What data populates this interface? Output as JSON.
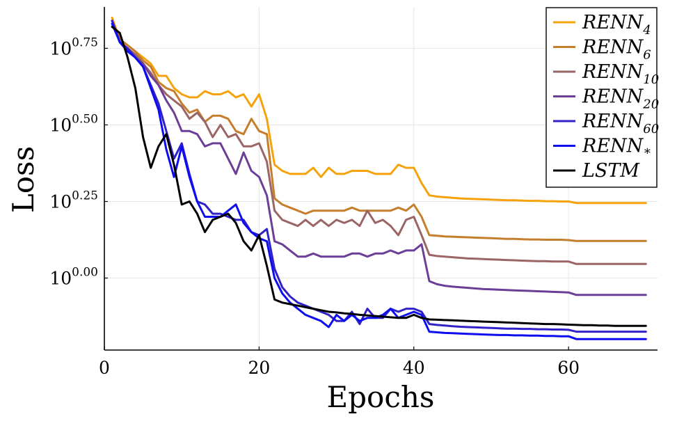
{
  "chart_data": {
    "type": "line",
    "xlabel": "Epochs",
    "ylabel": "Loss",
    "y_scale": "log10",
    "xlim": [
      0,
      71.5
    ],
    "ylim_log10": [
      -0.235,
      0.885
    ],
    "grid": true,
    "legend_position": "top-right",
    "x_ticks": [
      0,
      20,
      40,
      60
    ],
    "x_tick_labels": [
      "0",
      "20",
      "40",
      "60"
    ],
    "y_ticks_log10": [
      0.0,
      0.25,
      0.5,
      0.75
    ],
    "y_tick_labels": [
      {
        "base": "10",
        "exp": "0.00"
      },
      {
        "base": "10",
        "exp": "0.25"
      },
      {
        "base": "10",
        "exp": "0.50"
      },
      {
        "base": "10",
        "exp": "0.75"
      }
    ],
    "x": [
      1,
      2,
      3,
      4,
      5,
      6,
      7,
      8,
      9,
      10,
      11,
      12,
      13,
      14,
      15,
      16,
      17,
      18,
      19,
      20,
      21,
      22,
      23,
      24,
      25,
      26,
      27,
      28,
      29,
      30,
      31,
      32,
      33,
      34,
      35,
      36,
      37,
      38,
      39,
      40,
      41,
      42,
      43,
      44,
      45,
      46,
      47,
      48,
      49,
      50,
      51,
      52,
      53,
      54,
      55,
      56,
      57,
      58,
      59,
      60,
      61,
      62,
      63,
      64,
      65,
      66,
      67,
      68,
      69,
      70
    ],
    "series": [
      {
        "name": "RENN",
        "sub": "4",
        "color": "#f5a20c",
        "values_log10": [
          0.85,
          0.78,
          0.76,
          0.74,
          0.72,
          0.7,
          0.66,
          0.66,
          0.62,
          0.6,
          0.59,
          0.59,
          0.61,
          0.6,
          0.6,
          0.61,
          0.59,
          0.6,
          0.56,
          0.6,
          0.52,
          0.37,
          0.35,
          0.34,
          0.34,
          0.34,
          0.36,
          0.33,
          0.36,
          0.34,
          0.34,
          0.35,
          0.35,
          0.35,
          0.34,
          0.34,
          0.34,
          0.37,
          0.36,
          0.36,
          0.31,
          0.27,
          0.266,
          0.264,
          0.262,
          0.26,
          0.259,
          0.258,
          0.257,
          0.256,
          0.255,
          0.254,
          0.254,
          0.253,
          0.252,
          0.252,
          0.251,
          0.251,
          0.25,
          0.25,
          0.245,
          0.245,
          0.245,
          0.245,
          0.245,
          0.245,
          0.245,
          0.245,
          0.245,
          0.245
        ]
      },
      {
        "name": "RENN",
        "sub": "6",
        "color": "#c57e2c",
        "values_log10": [
          0.84,
          0.78,
          0.76,
          0.74,
          0.71,
          0.69,
          0.64,
          0.62,
          0.61,
          0.57,
          0.54,
          0.55,
          0.51,
          0.53,
          0.53,
          0.52,
          0.48,
          0.47,
          0.52,
          0.48,
          0.47,
          0.26,
          0.24,
          0.23,
          0.22,
          0.21,
          0.22,
          0.22,
          0.22,
          0.22,
          0.22,
          0.23,
          0.22,
          0.22,
          0.22,
          0.22,
          0.22,
          0.23,
          0.22,
          0.24,
          0.2,
          0.14,
          0.138,
          0.136,
          0.135,
          0.134,
          0.133,
          0.132,
          0.131,
          0.13,
          0.129,
          0.128,
          0.128,
          0.127,
          0.126,
          0.126,
          0.125,
          0.125,
          0.125,
          0.124,
          0.121,
          0.121,
          0.121,
          0.121,
          0.121,
          0.121,
          0.121,
          0.121,
          0.121,
          0.121
        ]
      },
      {
        "name": "RENN",
        "sub": "10",
        "color": "#9b6465",
        "values_log10": [
          0.84,
          0.77,
          0.75,
          0.73,
          0.7,
          0.67,
          0.63,
          0.6,
          0.58,
          0.56,
          0.52,
          0.54,
          0.51,
          0.46,
          0.5,
          0.46,
          0.47,
          0.43,
          0.43,
          0.44,
          0.38,
          0.22,
          0.19,
          0.18,
          0.17,
          0.19,
          0.17,
          0.19,
          0.17,
          0.19,
          0.18,
          0.19,
          0.17,
          0.22,
          0.18,
          0.19,
          0.17,
          0.14,
          0.19,
          0.2,
          0.14,
          0.076,
          0.072,
          0.07,
          0.068,
          0.066,
          0.064,
          0.063,
          0.062,
          0.061,
          0.06,
          0.059,
          0.058,
          0.057,
          0.056,
          0.055,
          0.055,
          0.054,
          0.054,
          0.054,
          0.046,
          0.046,
          0.046,
          0.046,
          0.046,
          0.046,
          0.046,
          0.046,
          0.046,
          0.046
        ]
      },
      {
        "name": "RENN",
        "sub": "20",
        "color": "#6b3e98",
        "values_log10": [
          0.84,
          0.77,
          0.75,
          0.72,
          0.7,
          0.66,
          0.63,
          0.58,
          0.54,
          0.48,
          0.48,
          0.47,
          0.43,
          0.44,
          0.44,
          0.39,
          0.34,
          0.41,
          0.35,
          0.33,
          0.27,
          0.12,
          0.11,
          0.09,
          0.07,
          0.07,
          0.08,
          0.07,
          0.07,
          0.07,
          0.07,
          0.08,
          0.08,
          0.07,
          0.08,
          0.08,
          0.09,
          0.08,
          0.09,
          0.09,
          0.11,
          -0.01,
          -0.02,
          -0.025,
          -0.028,
          -0.03,
          -0.032,
          -0.034,
          -0.036,
          -0.037,
          -0.038,
          -0.039,
          -0.04,
          -0.041,
          -0.042,
          -0.043,
          -0.044,
          -0.045,
          -0.046,
          -0.047,
          -0.055,
          -0.055,
          -0.055,
          -0.055,
          -0.055,
          -0.055,
          -0.055,
          -0.055,
          -0.055,
          -0.055
        ]
      },
      {
        "name": "RENN",
        "sub": "60",
        "color": "#3021c8",
        "values_log10": [
          0.84,
          0.77,
          0.75,
          0.72,
          0.69,
          0.63,
          0.57,
          0.48,
          0.39,
          0.44,
          0.34,
          0.25,
          0.24,
          0.21,
          0.21,
          0.2,
          0.19,
          0.19,
          0.15,
          0.14,
          0.16,
          0.03,
          -0.03,
          -0.06,
          -0.08,
          -0.09,
          -0.1,
          -0.11,
          -0.12,
          -0.14,
          -0.14,
          -0.11,
          -0.15,
          -0.1,
          -0.13,
          -0.13,
          -0.1,
          -0.11,
          -0.1,
          -0.1,
          -0.11,
          -0.15,
          -0.153,
          -0.155,
          -0.157,
          -0.159,
          -0.16,
          -0.161,
          -0.162,
          -0.163,
          -0.164,
          -0.165,
          -0.165,
          -0.166,
          -0.166,
          -0.167,
          -0.167,
          -0.168,
          -0.168,
          -0.169,
          -0.175,
          -0.175,
          -0.175,
          -0.175,
          -0.175,
          -0.175,
          -0.175,
          -0.175,
          -0.175,
          -0.175
        ]
      },
      {
        "name": "RENN",
        "sub": "*",
        "color": "#0d0df0",
        "values_log10": [
          0.83,
          0.77,
          0.74,
          0.72,
          0.69,
          0.62,
          0.55,
          0.42,
          0.33,
          0.43,
          0.33,
          0.25,
          0.2,
          0.2,
          0.2,
          0.22,
          0.24,
          0.18,
          0.15,
          0.13,
          0.12,
          0.0,
          -0.05,
          -0.08,
          -0.1,
          -0.12,
          -0.13,
          -0.14,
          -0.16,
          -0.12,
          -0.14,
          -0.12,
          -0.14,
          -0.13,
          -0.13,
          -0.12,
          -0.1,
          -0.13,
          -0.12,
          -0.11,
          -0.12,
          -0.175,
          -0.177,
          -0.179,
          -0.18,
          -0.181,
          -0.182,
          -0.183,
          -0.184,
          -0.185,
          -0.186,
          -0.186,
          -0.187,
          -0.187,
          -0.188,
          -0.188,
          -0.189,
          -0.189,
          -0.19,
          -0.19,
          -0.199,
          -0.199,
          -0.199,
          -0.199,
          -0.199,
          -0.199,
          -0.199,
          -0.199,
          -0.199,
          -0.199
        ]
      },
      {
        "name": "LSTM",
        "sub": "",
        "color": "#000000",
        "values_log10": [
          0.82,
          0.8,
          0.72,
          0.62,
          0.46,
          0.36,
          0.43,
          0.47,
          0.37,
          0.24,
          0.25,
          0.21,
          0.15,
          0.19,
          0.2,
          0.21,
          0.18,
          0.12,
          0.09,
          0.14,
          0.04,
          -0.07,
          -0.08,
          -0.085,
          -0.09,
          -0.095,
          -0.1,
          -0.105,
          -0.11,
          -0.112,
          -0.115,
          -0.117,
          -0.12,
          -0.122,
          -0.124,
          -0.126,
          -0.128,
          -0.13,
          -0.13,
          -0.12,
          -0.13,
          -0.135,
          -0.136,
          -0.137,
          -0.138,
          -0.139,
          -0.14,
          -0.141,
          -0.142,
          -0.143,
          -0.144,
          -0.145,
          -0.146,
          -0.147,
          -0.148,
          -0.149,
          -0.15,
          -0.15,
          -0.151,
          -0.152,
          -0.153,
          -0.154,
          -0.154,
          -0.155,
          -0.155,
          -0.156,
          -0.156,
          -0.156,
          -0.156,
          -0.156
        ]
      }
    ]
  }
}
